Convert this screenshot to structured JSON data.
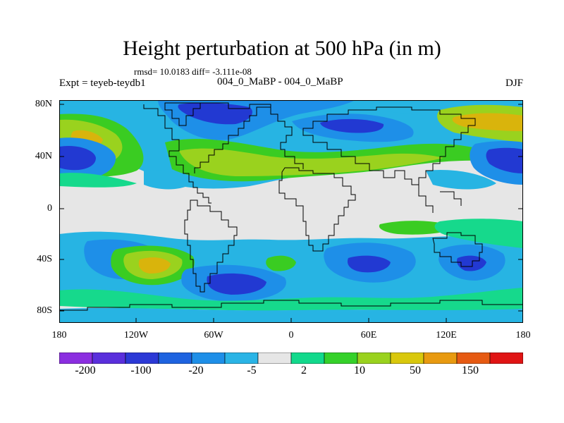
{
  "title": "Height perturbation at 500 hPa (in m)",
  "stats": "rmsd= 10.0183  diff= -3.111e-08",
  "left_label": "Expt = teyeb-teydb1",
  "center_label": "004_0_MaBP - 004_0_MaBP",
  "right_label": "DJF",
  "axes": {
    "y_ticks": [
      "80N",
      "40N",
      "0",
      "40S",
      "80S"
    ],
    "x_ticks": [
      "180",
      "120W",
      "60W",
      "0",
      "60E",
      "120E",
      "180"
    ]
  },
  "colorbar": {
    "labels": [
      "-200",
      "-100",
      "-20",
      "-5",
      "2",
      "10",
      "50",
      "150"
    ],
    "colors": [
      "#8b2ee0",
      "#5a2fdc",
      "#2c39d6",
      "#1e63e0",
      "#1e8fe8",
      "#2ab4e6",
      "#e6e6e6",
      "#12d98c",
      "#35d12a",
      "#9ad21e",
      "#d9c80c",
      "#e89a10",
      "#e65a12",
      "#e01414"
    ]
  },
  "colors": {
    "land_outline": "#000000",
    "neutral": "#e6e6e6",
    "blue_light": "#27b4e3",
    "blue_mid": "#1e8fe8",
    "blue_dark": "#2239d2",
    "green_light": "#16d98c",
    "green": "#3acc22",
    "yellow_green": "#9ad21e",
    "orange": "#d9b40c"
  }
}
